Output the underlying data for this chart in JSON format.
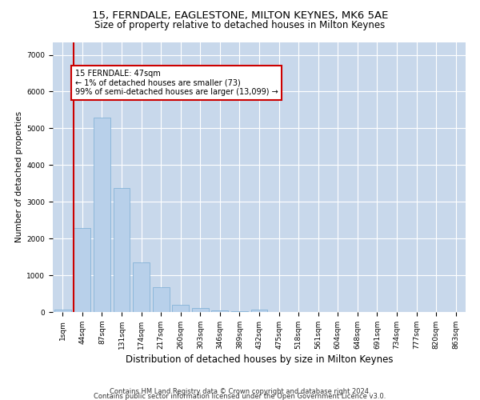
{
  "title1": "15, FERNDALE, EAGLESTONE, MILTON KEYNES, MK6 5AE",
  "title2": "Size of property relative to detached houses in Milton Keynes",
  "xlabel": "Distribution of detached houses by size in Milton Keynes",
  "ylabel": "Number of detached properties",
  "footnote1": "Contains HM Land Registry data © Crown copyright and database right 2024.",
  "footnote2": "Contains public sector information licensed under the Open Government Licence v3.0.",
  "annotation_line1": "15 FERNDALE: 47sqm",
  "annotation_line2": "← 1% of detached houses are smaller (73)",
  "annotation_line3": "99% of semi-detached houses are larger (13,099) →",
  "bar_color": "#b8d0ea",
  "bar_edge_color": "#7aadd4",
  "marker_color": "#cc0000",
  "annotation_box_edge_color": "#cc0000",
  "background_color": "#ffffff",
  "grid_color": "#c8d8eb",
  "categories": [
    "1sqm",
    "44sqm",
    "87sqm",
    "131sqm",
    "174sqm",
    "217sqm",
    "260sqm",
    "303sqm",
    "346sqm",
    "389sqm",
    "432sqm",
    "475sqm",
    "518sqm",
    "561sqm",
    "604sqm",
    "648sqm",
    "691sqm",
    "734sqm",
    "777sqm",
    "820sqm",
    "863sqm"
  ],
  "values": [
    73,
    2280,
    5300,
    3380,
    1340,
    680,
    195,
    105,
    45,
    25,
    65,
    0,
    0,
    0,
    0,
    0,
    0,
    0,
    0,
    0,
    0
  ],
  "ylim": [
    0,
    7350
  ],
  "yticks": [
    0,
    1000,
    2000,
    3000,
    4000,
    5000,
    6000,
    7000
  ],
  "title1_fontsize": 9.5,
  "title2_fontsize": 8.5,
  "xlabel_fontsize": 8.5,
  "ylabel_fontsize": 7.5,
  "tick_fontsize": 6.5,
  "annotation_fontsize": 7.0,
  "footnote_fontsize": 6.0
}
